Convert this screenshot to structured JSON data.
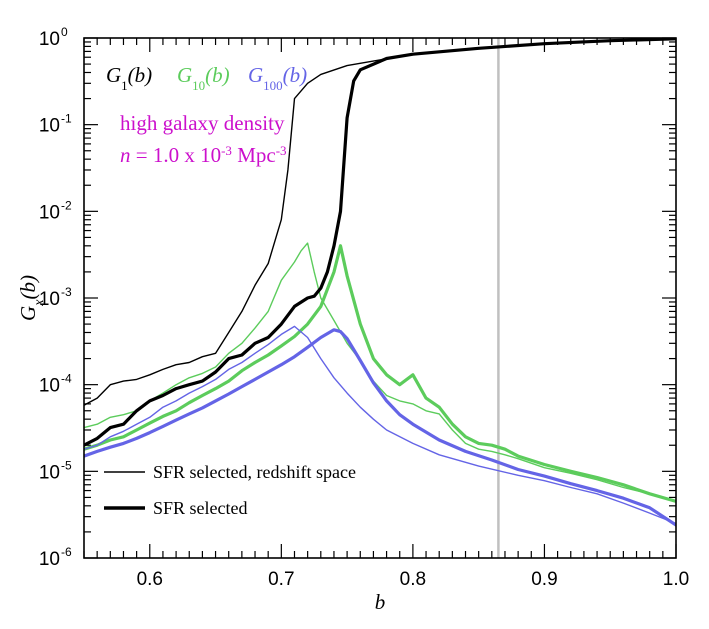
{
  "chart_data": {
    "type": "line",
    "xlabel": "b",
    "ylabel_base": "G",
    "ylabel_sub": "x",
    "ylabel_arg": "(b)",
    "xlim": [
      0.55,
      1.0
    ],
    "ylim": [
      1e-06,
      1
    ],
    "yscale": "log",
    "grid": false,
    "xticks": [
      {
        "value": 0.6,
        "label": "0.6"
      },
      {
        "value": 0.7,
        "label": "0.7"
      },
      {
        "value": 0.8,
        "label": "0.8"
      },
      {
        "value": 0.9,
        "label": "0.9"
      },
      {
        "value": 1.0,
        "label": "1.0"
      }
    ],
    "yticks": [
      {
        "value": 1,
        "base": "10",
        "exp": "0"
      },
      {
        "value": 0.1,
        "base": "10",
        "exp": "-1"
      },
      {
        "value": 0.01,
        "base": "10",
        "exp": "-2"
      },
      {
        "value": 0.001,
        "base": "10",
        "exp": "-3"
      },
      {
        "value": 0.0001,
        "base": "10",
        "exp": "-4"
      },
      {
        "value": 1e-05,
        "base": "10",
        "exp": "-5"
      },
      {
        "value": 1e-06,
        "base": "10",
        "exp": "-6"
      }
    ],
    "vline": {
      "x": 0.865,
      "color": "#c0c0c0"
    },
    "colors": {
      "g1": "#000000",
      "g10": "#5ccc5c",
      "g100": "#6464e6",
      "annotation": "#cc10cc"
    },
    "legend_top": [
      {
        "base": "G",
        "sub": "1",
        "arg": "(b)",
        "color": "#000000"
      },
      {
        "base": "G",
        "sub": "10",
        "arg": "(b)",
        "color": "#5ccc5c"
      },
      {
        "base": "G",
        "sub": "100",
        "arg": "(b)",
        "color": "#6464e6"
      }
    ],
    "annotation": {
      "line1": "high galaxy density",
      "n": "n",
      "eq": " = 1.0 x 10",
      "exp1": "-3",
      "unit": " Mpc",
      "exp2": "-3"
    },
    "legend_bottom": [
      {
        "label": "SFR selected, redshift space",
        "style": "thin"
      },
      {
        "label": "SFR selected",
        "style": "thick"
      }
    ],
    "series": [
      {
        "id": "g1-thin",
        "color": "#000000",
        "width": 1.4,
        "points": [
          [
            0.55,
            5.8e-05
          ],
          [
            0.56,
            7e-05
          ],
          [
            0.57,
            0.0001
          ],
          [
            0.58,
            0.00011
          ],
          [
            0.59,
            0.000115
          ],
          [
            0.6,
            0.00013
          ],
          [
            0.61,
            0.00015
          ],
          [
            0.62,
            0.00017
          ],
          [
            0.63,
            0.00018
          ],
          [
            0.64,
            0.00021
          ],
          [
            0.65,
            0.00023
          ],
          [
            0.66,
            0.0004
          ],
          [
            0.67,
            0.0007
          ],
          [
            0.68,
            0.0014
          ],
          [
            0.69,
            0.0025
          ],
          [
            0.7,
            0.008
          ],
          [
            0.705,
            0.03
          ],
          [
            0.71,
            0.2
          ],
          [
            0.72,
            0.3
          ],
          [
            0.73,
            0.38
          ],
          [
            0.75,
            0.48
          ],
          [
            0.8,
            0.65
          ],
          [
            0.85,
            0.76
          ],
          [
            0.9,
            0.86
          ],
          [
            0.95,
            0.93
          ],
          [
            1.0,
            0.98
          ]
        ]
      },
      {
        "id": "g1-thick",
        "color": "#000000",
        "width": 3.2,
        "points": [
          [
            0.55,
            2e-05
          ],
          [
            0.56,
            2.4e-05
          ],
          [
            0.57,
            3.2e-05
          ],
          [
            0.58,
            3.5e-05
          ],
          [
            0.59,
            5e-05
          ],
          [
            0.6,
            6.5e-05
          ],
          [
            0.61,
            7.5e-05
          ],
          [
            0.62,
            9e-05
          ],
          [
            0.63,
            0.0001
          ],
          [
            0.64,
            0.00011
          ],
          [
            0.65,
            0.00014
          ],
          [
            0.66,
            0.0002
          ],
          [
            0.67,
            0.00022
          ],
          [
            0.68,
            0.0003
          ],
          [
            0.69,
            0.00035
          ],
          [
            0.7,
            0.0005
          ],
          [
            0.71,
            0.0008
          ],
          [
            0.72,
            0.001
          ],
          [
            0.725,
            0.00105
          ],
          [
            0.73,
            0.0013
          ],
          [
            0.735,
            0.002
          ],
          [
            0.74,
            0.004
          ],
          [
            0.745,
            0.01
          ],
          [
            0.75,
            0.12
          ],
          [
            0.755,
            0.32
          ],
          [
            0.76,
            0.43
          ],
          [
            0.78,
            0.58
          ],
          [
            0.8,
            0.65
          ],
          [
            0.85,
            0.76
          ],
          [
            0.9,
            0.86
          ],
          [
            0.95,
            0.93
          ],
          [
            1.0,
            0.98
          ]
        ]
      },
      {
        "id": "g10-thin",
        "color": "#5ccc5c",
        "width": 1.4,
        "points": [
          [
            0.55,
            3.2e-05
          ],
          [
            0.56,
            3.5e-05
          ],
          [
            0.57,
            4.2e-05
          ],
          [
            0.58,
            4.5e-05
          ],
          [
            0.59,
            5e-05
          ],
          [
            0.6,
            6.5e-05
          ],
          [
            0.61,
            8e-05
          ],
          [
            0.62,
            0.0001
          ],
          [
            0.63,
            0.00012
          ],
          [
            0.64,
            0.000135
          ],
          [
            0.65,
            0.00016
          ],
          [
            0.66,
            0.00023
          ],
          [
            0.67,
            0.0003
          ],
          [
            0.68,
            0.00045
          ],
          [
            0.69,
            0.0007
          ],
          [
            0.7,
            0.0016
          ],
          [
            0.71,
            0.0026
          ],
          [
            0.715,
            0.0035
          ],
          [
            0.72,
            0.0043
          ],
          [
            0.725,
            0.002
          ],
          [
            0.73,
            0.001
          ],
          [
            0.74,
            0.00055
          ],
          [
            0.75,
            0.0003
          ],
          [
            0.76,
            0.00019
          ],
          [
            0.77,
            0.00011
          ],
          [
            0.78,
            7.5e-05
          ],
          [
            0.79,
            6.5e-05
          ],
          [
            0.8,
            6e-05
          ],
          [
            0.81,
            5e-05
          ],
          [
            0.82,
            4.6e-05
          ],
          [
            0.83,
            3e-05
          ],
          [
            0.84,
            2.1e-05
          ],
          [
            0.85,
            1.8e-05
          ],
          [
            0.86,
            1.7e-05
          ],
          [
            0.87,
            1.55e-05
          ],
          [
            0.88,
            1.4e-05
          ],
          [
            0.9,
            1.1e-05
          ],
          [
            0.92,
            9.5e-06
          ],
          [
            0.94,
            8e-06
          ],
          [
            0.96,
            6.5e-06
          ],
          [
            0.98,
            5.5e-06
          ],
          [
            1.0,
            4.6e-06
          ]
        ]
      },
      {
        "id": "g10-thick",
        "color": "#5ccc5c",
        "width": 3.2,
        "points": [
          [
            0.55,
            1.8e-05
          ],
          [
            0.56,
            2e-05
          ],
          [
            0.57,
            2.3e-05
          ],
          [
            0.58,
            2.5e-05
          ],
          [
            0.59,
            3e-05
          ],
          [
            0.6,
            3.6e-05
          ],
          [
            0.61,
            4.3e-05
          ],
          [
            0.62,
            5e-05
          ],
          [
            0.63,
            6.2e-05
          ],
          [
            0.64,
            7.5e-05
          ],
          [
            0.65,
            9e-05
          ],
          [
            0.66,
            0.00011
          ],
          [
            0.67,
            0.000145
          ],
          [
            0.68,
            0.00018
          ],
          [
            0.69,
            0.00022
          ],
          [
            0.7,
            0.00028
          ],
          [
            0.71,
            0.00036
          ],
          [
            0.72,
            0.0005
          ],
          [
            0.73,
            0.0008
          ],
          [
            0.74,
            0.002
          ],
          [
            0.745,
            0.004
          ],
          [
            0.75,
            0.0018
          ],
          [
            0.76,
            0.0005
          ],
          [
            0.77,
            0.0002
          ],
          [
            0.78,
            0.00013
          ],
          [
            0.79,
            0.0001
          ],
          [
            0.8,
            0.00013
          ],
          [
            0.81,
            7e-05
          ],
          [
            0.82,
            5.5e-05
          ],
          [
            0.83,
            3.5e-05
          ],
          [
            0.84,
            2.5e-05
          ],
          [
            0.85,
            2.1e-05
          ],
          [
            0.86,
            2e-05
          ],
          [
            0.87,
            1.8e-05
          ],
          [
            0.88,
            1.5e-05
          ],
          [
            0.9,
            1.2e-05
          ],
          [
            0.92,
            1e-05
          ],
          [
            0.94,
            8.5e-06
          ],
          [
            0.96,
            7e-06
          ],
          [
            0.98,
            5.5e-06
          ],
          [
            1.0,
            4.5e-06
          ]
        ]
      },
      {
        "id": "g100-thin",
        "color": "#6464e6",
        "width": 1.4,
        "points": [
          [
            0.55,
            1.8e-05
          ],
          [
            0.56,
            2e-05
          ],
          [
            0.57,
            2.5e-05
          ],
          [
            0.58,
            2.9e-05
          ],
          [
            0.59,
            3.5e-05
          ],
          [
            0.6,
            4.2e-05
          ],
          [
            0.61,
            5.5e-05
          ],
          [
            0.62,
            6.5e-05
          ],
          [
            0.63,
            8e-05
          ],
          [
            0.64,
            9.5e-05
          ],
          [
            0.65,
            0.000115
          ],
          [
            0.66,
            0.00015
          ],
          [
            0.67,
            0.00018
          ],
          [
            0.68,
            0.00023
          ],
          [
            0.69,
            0.00029
          ],
          [
            0.7,
            0.00038
          ],
          [
            0.71,
            0.00047
          ],
          [
            0.72,
            0.00035
          ],
          [
            0.73,
            0.0002
          ],
          [
            0.74,
            0.00012
          ],
          [
            0.75,
            8e-05
          ],
          [
            0.76,
            5.5e-05
          ],
          [
            0.77,
            4e-05
          ],
          [
            0.78,
            3e-05
          ],
          [
            0.8,
            2.1e-05
          ],
          [
            0.82,
            1.55e-05
          ],
          [
            0.85,
            1.15e-05
          ],
          [
            0.88,
            9e-06
          ],
          [
            0.9,
            7.8e-06
          ],
          [
            0.92,
            6.5e-06
          ],
          [
            0.94,
            5.5e-06
          ],
          [
            0.96,
            4.3e-06
          ],
          [
            0.98,
            3.3e-06
          ],
          [
            1.0,
            2.5e-06
          ]
        ]
      },
      {
        "id": "g100-thick",
        "color": "#6464e6",
        "width": 3.2,
        "points": [
          [
            0.55,
            1.5e-05
          ],
          [
            0.56,
            1.7e-05
          ],
          [
            0.57,
            1.9e-05
          ],
          [
            0.58,
            2.1e-05
          ],
          [
            0.59,
            2.4e-05
          ],
          [
            0.6,
            2.8e-05
          ],
          [
            0.61,
            3.3e-05
          ],
          [
            0.62,
            3.9e-05
          ],
          [
            0.63,
            4.6e-05
          ],
          [
            0.64,
            5.4e-05
          ],
          [
            0.65,
            6.5e-05
          ],
          [
            0.66,
            7.8e-05
          ],
          [
            0.67,
            9.5e-05
          ],
          [
            0.68,
            0.000115
          ],
          [
            0.69,
            0.00014
          ],
          [
            0.7,
            0.00017
          ],
          [
            0.71,
            0.00021
          ],
          [
            0.72,
            0.00027
          ],
          [
            0.73,
            0.00035
          ],
          [
            0.74,
            0.00043
          ],
          [
            0.745,
            0.00041
          ],
          [
            0.75,
            0.00034
          ],
          [
            0.76,
            0.00019
          ],
          [
            0.77,
            0.000105
          ],
          [
            0.78,
            6.5e-05
          ],
          [
            0.79,
            4.5e-05
          ],
          [
            0.8,
            3.5e-05
          ],
          [
            0.82,
            2.3e-05
          ],
          [
            0.84,
            1.7e-05
          ],
          [
            0.86,
            1.35e-05
          ],
          [
            0.88,
            1.05e-05
          ],
          [
            0.9,
            8.8e-06
          ],
          [
            0.92,
            7.2e-06
          ],
          [
            0.94,
            6e-06
          ],
          [
            0.96,
            4.9e-06
          ],
          [
            0.98,
            3.8e-06
          ],
          [
            1.0,
            2.4e-06
          ]
        ]
      }
    ]
  }
}
